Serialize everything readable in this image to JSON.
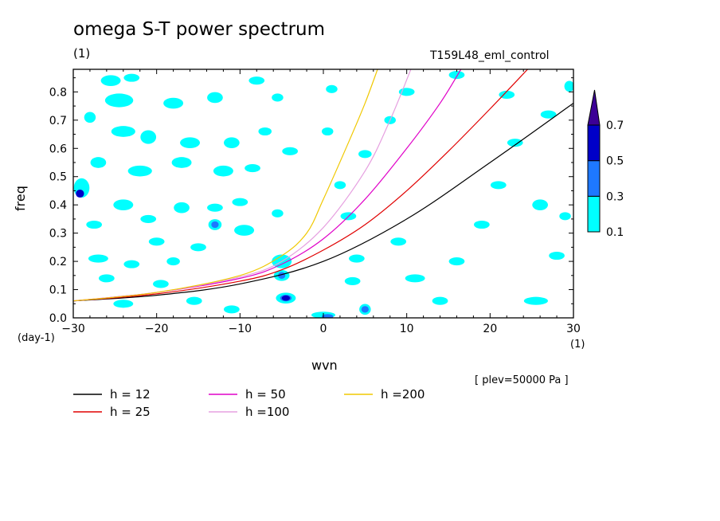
{
  "title": "omega S-T power spectrum",
  "title_units": "(1)",
  "run_label": "T159L48_eml_control",
  "plev_label": "[ plev=50000 Pa ]",
  "chart_data": {
    "type": "contour",
    "xlabel": "wvn",
    "x_units": "(1)",
    "ylabel": "freq",
    "y_units": "(day-1)",
    "xlim": [
      -30,
      30
    ],
    "ylim": [
      0,
      0.88
    ],
    "x_ticks": [
      -30,
      -20,
      -10,
      0,
      10,
      20,
      30
    ],
    "x_tick_labels": [
      "−30",
      "−20",
      "−10",
      "0",
      "10",
      "20",
      "30"
    ],
    "y_ticks": [
      0.0,
      0.1,
      0.2,
      0.3,
      0.4,
      0.5,
      0.6,
      0.7,
      0.8
    ],
    "y_tick_labels": [
      "0.0",
      "0.1",
      "0.2",
      "0.3",
      "0.4",
      "0.5",
      "0.6",
      "0.7",
      "0.8"
    ],
    "colorbar": {
      "levels": [
        "0.1",
        "0.3",
        "0.5",
        "0.7"
      ],
      "colors": [
        "#00ffff",
        "#1e78ff",
        "#0000c8",
        "#3c0096"
      ]
    },
    "blobs": [
      {
        "x": -25.5,
        "y": 0.84,
        "w": 2.0,
        "h": 0.03,
        "level": 0.1
      },
      {
        "x": -23.0,
        "y": 0.85,
        "w": 1.5,
        "h": 0.02,
        "level": 0.1
      },
      {
        "x": -24.5,
        "y": 0.77,
        "w": 3.0,
        "h": 0.04,
        "level": 0.1
      },
      {
        "x": -18.0,
        "y": 0.76,
        "w": 2.0,
        "h": 0.03,
        "level": 0.1
      },
      {
        "x": -13.0,
        "y": 0.78,
        "w": 1.5,
        "h": 0.03,
        "level": 0.1
      },
      {
        "x": -8.0,
        "y": 0.84,
        "w": 1.5,
        "h": 0.02,
        "level": 0.1
      },
      {
        "x": -5.5,
        "y": 0.78,
        "w": 1.0,
        "h": 0.02,
        "level": 0.1
      },
      {
        "x": 1.0,
        "y": 0.81,
        "w": 1.0,
        "h": 0.02,
        "level": 0.1
      },
      {
        "x": -28.0,
        "y": 0.71,
        "w": 1.0,
        "h": 0.03,
        "level": 0.1
      },
      {
        "x": -24.0,
        "y": 0.66,
        "w": 2.5,
        "h": 0.03,
        "level": 0.1
      },
      {
        "x": -21.0,
        "y": 0.64,
        "w": 1.5,
        "h": 0.04,
        "level": 0.1
      },
      {
        "x": -16.0,
        "y": 0.62,
        "w": 2.0,
        "h": 0.03,
        "level": 0.1
      },
      {
        "x": -11.0,
        "y": 0.62,
        "w": 1.5,
        "h": 0.03,
        "level": 0.1
      },
      {
        "x": -7.0,
        "y": 0.66,
        "w": 1.2,
        "h": 0.02,
        "level": 0.1
      },
      {
        "x": -4.0,
        "y": 0.59,
        "w": 1.5,
        "h": 0.02,
        "level": 0.1
      },
      {
        "x": 0.5,
        "y": 0.66,
        "w": 1.0,
        "h": 0.02,
        "level": 0.1
      },
      {
        "x": -27.0,
        "y": 0.55,
        "w": 1.5,
        "h": 0.03,
        "level": 0.1
      },
      {
        "x": -22.0,
        "y": 0.52,
        "w": 2.5,
        "h": 0.03,
        "level": 0.1
      },
      {
        "x": -17.0,
        "y": 0.55,
        "w": 2.0,
        "h": 0.03,
        "level": 0.1
      },
      {
        "x": -12.0,
        "y": 0.52,
        "w": 2.0,
        "h": 0.03,
        "level": 0.1
      },
      {
        "x": -8.5,
        "y": 0.53,
        "w": 1.5,
        "h": 0.02,
        "level": 0.1
      },
      {
        "x": -29.0,
        "y": 0.46,
        "w": 1.5,
        "h": 0.06,
        "level": 0.1
      },
      {
        "x": -29.2,
        "y": 0.44,
        "w": 0.6,
        "h": 0.02,
        "level": 0.5
      },
      {
        "x": -24.0,
        "y": 0.4,
        "w": 2.0,
        "h": 0.03,
        "level": 0.1
      },
      {
        "x": -17.0,
        "y": 0.39,
        "w": 1.5,
        "h": 0.03,
        "level": 0.1
      },
      {
        "x": -13.0,
        "y": 0.39,
        "w": 1.5,
        "h": 0.02,
        "level": 0.1
      },
      {
        "x": -10.0,
        "y": 0.41,
        "w": 1.5,
        "h": 0.02,
        "level": 0.1
      },
      {
        "x": -5.5,
        "y": 0.37,
        "w": 1.0,
        "h": 0.02,
        "level": 0.1
      },
      {
        "x": -27.5,
        "y": 0.33,
        "w": 1.5,
        "h": 0.02,
        "level": 0.1
      },
      {
        "x": -21.0,
        "y": 0.35,
        "w": 1.5,
        "h": 0.02,
        "level": 0.1
      },
      {
        "x": -13.0,
        "y": 0.33,
        "w": 1.2,
        "h": 0.03,
        "level": 0.1
      },
      {
        "x": -13.0,
        "y": 0.33,
        "w": 0.5,
        "h": 0.015,
        "level": 0.3
      },
      {
        "x": -9.5,
        "y": 0.31,
        "w": 2.0,
        "h": 0.03,
        "level": 0.1
      },
      {
        "x": -20.0,
        "y": 0.27,
        "w": 1.5,
        "h": 0.02,
        "level": 0.1
      },
      {
        "x": -15.0,
        "y": 0.25,
        "w": 1.5,
        "h": 0.02,
        "level": 0.1
      },
      {
        "x": -27.0,
        "y": 0.21,
        "w": 2.0,
        "h": 0.02,
        "level": 0.1
      },
      {
        "x": -23.0,
        "y": 0.19,
        "w": 1.5,
        "h": 0.02,
        "level": 0.1
      },
      {
        "x": -18.0,
        "y": 0.2,
        "w": 1.2,
        "h": 0.02,
        "level": 0.1
      },
      {
        "x": -26.0,
        "y": 0.14,
        "w": 1.5,
        "h": 0.02,
        "level": 0.1
      },
      {
        "x": -19.5,
        "y": 0.12,
        "w": 1.5,
        "h": 0.02,
        "level": 0.1
      },
      {
        "x": -24.0,
        "y": 0.05,
        "w": 2.0,
        "h": 0.02,
        "level": 0.1
      },
      {
        "x": -15.5,
        "y": 0.06,
        "w": 1.5,
        "h": 0.02,
        "level": 0.1
      },
      {
        "x": -11.0,
        "y": 0.03,
        "w": 1.5,
        "h": 0.02,
        "level": 0.1
      },
      {
        "x": -5.0,
        "y": 0.2,
        "w": 2.0,
        "h": 0.04,
        "level": 0.1
      },
      {
        "x": -5.0,
        "y": 0.15,
        "w": 1.5,
        "h": 0.03,
        "level": 0.1
      },
      {
        "x": -5.0,
        "y": 0.15,
        "w": 0.5,
        "h": 0.015,
        "level": 0.3
      },
      {
        "x": -4.5,
        "y": 0.07,
        "w": 2.0,
        "h": 0.03,
        "level": 0.1
      },
      {
        "x": -4.5,
        "y": 0.07,
        "w": 1.0,
        "h": 0.015,
        "level": 0.3
      },
      {
        "x": -4.5,
        "y": 0.07,
        "w": 0.6,
        "h": 0.01,
        "level": 0.5
      },
      {
        "x": 0.0,
        "y": 0.01,
        "w": 2.5,
        "h": 0.015,
        "level": 0.1
      },
      {
        "x": 0.5,
        "y": 0.005,
        "w": 1.0,
        "h": 0.008,
        "level": 0.3
      },
      {
        "x": 5.0,
        "y": 0.03,
        "w": 1.0,
        "h": 0.03,
        "level": 0.1
      },
      {
        "x": 5.0,
        "y": 0.03,
        "w": 0.5,
        "h": 0.015,
        "level": 0.3
      },
      {
        "x": 3.5,
        "y": 0.13,
        "w": 1.5,
        "h": 0.02,
        "level": 0.1
      },
      {
        "x": 4.0,
        "y": 0.21,
        "w": 1.5,
        "h": 0.02,
        "level": 0.1
      },
      {
        "x": 3.0,
        "y": 0.36,
        "w": 1.5,
        "h": 0.02,
        "level": 0.1
      },
      {
        "x": 2.0,
        "y": 0.47,
        "w": 1.0,
        "h": 0.02,
        "level": 0.1
      },
      {
        "x": 5.0,
        "y": 0.58,
        "w": 1.2,
        "h": 0.02,
        "level": 0.1
      },
      {
        "x": 8.0,
        "y": 0.7,
        "w": 1.0,
        "h": 0.02,
        "level": 0.1
      },
      {
        "x": 10.0,
        "y": 0.8,
        "w": 1.5,
        "h": 0.02,
        "level": 0.1
      },
      {
        "x": 9.0,
        "y": 0.27,
        "w": 1.5,
        "h": 0.02,
        "level": 0.1
      },
      {
        "x": 11.0,
        "y": 0.14,
        "w": 2.0,
        "h": 0.02,
        "level": 0.1
      },
      {
        "x": 14.0,
        "y": 0.06,
        "w": 1.5,
        "h": 0.02,
        "level": 0.1
      },
      {
        "x": 16.0,
        "y": 0.2,
        "w": 1.5,
        "h": 0.02,
        "level": 0.1
      },
      {
        "x": 19.0,
        "y": 0.33,
        "w": 1.5,
        "h": 0.02,
        "level": 0.1
      },
      {
        "x": 21.0,
        "y": 0.47,
        "w": 1.5,
        "h": 0.02,
        "level": 0.1
      },
      {
        "x": 23.0,
        "y": 0.62,
        "w": 1.5,
        "h": 0.02,
        "level": 0.1
      },
      {
        "x": 22.0,
        "y": 0.79,
        "w": 1.5,
        "h": 0.02,
        "level": 0.1
      },
      {
        "x": 27.0,
        "y": 0.72,
        "w": 1.5,
        "h": 0.02,
        "level": 0.1
      },
      {
        "x": 26.0,
        "y": 0.4,
        "w": 1.5,
        "h": 0.03,
        "level": 0.1
      },
      {
        "x": 29.0,
        "y": 0.36,
        "w": 1.0,
        "h": 0.02,
        "level": 0.1
      },
      {
        "x": 25.5,
        "y": 0.06,
        "w": 2.5,
        "h": 0.02,
        "level": 0.1
      },
      {
        "x": 28.0,
        "y": 0.22,
        "w": 1.5,
        "h": 0.02,
        "level": 0.1
      },
      {
        "x": 16.0,
        "y": 0.86,
        "w": 1.5,
        "h": 0.02,
        "level": 0.1
      },
      {
        "x": 29.5,
        "y": 0.82,
        "w": 0.8,
        "h": 0.03,
        "level": 0.1
      }
    ],
    "series": [
      {
        "name": "h = 12",
        "h": 12,
        "color": "#000000",
        "points": [
          [
            -30,
            0.06
          ],
          [
            -20,
            0.08
          ],
          [
            -10,
            0.12
          ],
          [
            0,
            0.2
          ],
          [
            10,
            0.35
          ],
          [
            20,
            0.55
          ],
          [
            30,
            0.76
          ]
        ]
      },
      {
        "name": "h = 25",
        "h": 25,
        "color": "#e00000",
        "points": [
          [
            -30,
            0.06
          ],
          [
            -20,
            0.085
          ],
          [
            -10,
            0.13
          ],
          [
            -5,
            0.17
          ],
          [
            0,
            0.24
          ],
          [
            5,
            0.33
          ],
          [
            10,
            0.45
          ],
          [
            15,
            0.59
          ],
          [
            20,
            0.74
          ],
          [
            24.5,
            0.88
          ]
        ]
      },
      {
        "name": "h = 50",
        "h": 50,
        "color": "#e000c8",
        "points": [
          [
            -30,
            0.06
          ],
          [
            -20,
            0.09
          ],
          [
            -10,
            0.14
          ],
          [
            -5,
            0.19
          ],
          [
            0,
            0.28
          ],
          [
            5,
            0.42
          ],
          [
            10,
            0.6
          ],
          [
            14,
            0.76
          ],
          [
            16.5,
            0.88
          ]
        ]
      },
      {
        "name": "h =100",
        "h": 100,
        "color": "#e6a0e0",
        "points": [
          [
            -30,
            0.06
          ],
          [
            -20,
            0.09
          ],
          [
            -10,
            0.145
          ],
          [
            -5,
            0.2
          ],
          [
            0,
            0.32
          ],
          [
            5,
            0.52
          ],
          [
            8,
            0.7
          ],
          [
            10.5,
            0.88
          ]
        ]
      },
      {
        "name": "h =200",
        "h": 200,
        "color": "#f0c800",
        "points": [
          [
            -30,
            0.06
          ],
          [
            -20,
            0.09
          ],
          [
            -10,
            0.15
          ],
          [
            -5,
            0.22
          ],
          [
            -2,
            0.3
          ],
          [
            0,
            0.42
          ],
          [
            3,
            0.62
          ],
          [
            5,
            0.76
          ],
          [
            6.5,
            0.88
          ]
        ]
      }
    ]
  }
}
